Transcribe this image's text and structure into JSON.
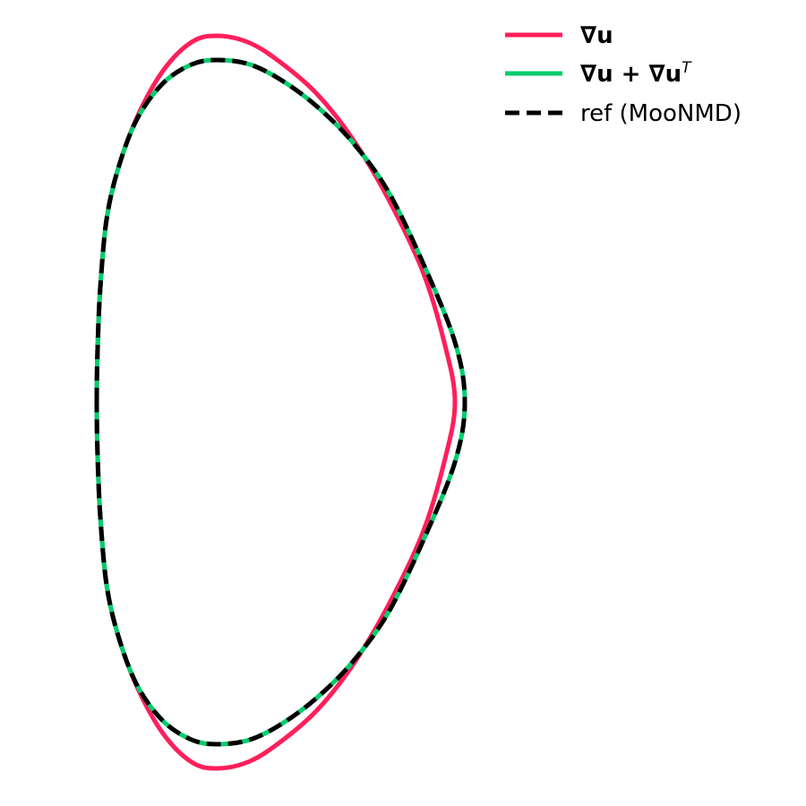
{
  "chart_data": {
    "type": "line",
    "title": "",
    "xlabel": "",
    "ylabel": "",
    "axes_visible": false,
    "grid": false,
    "legend_position": "top-right",
    "series": [
      {
        "name": "∇u",
        "color": "#ff1f5b",
        "style": "solid",
        "points": [
          [
            0.0,
            0.0
          ],
          [
            0.001,
            0.06
          ],
          [
            0.004,
            0.128
          ],
          [
            0.011,
            0.204
          ],
          [
            0.024,
            0.261
          ],
          [
            0.045,
            0.318
          ],
          [
            0.074,
            0.37
          ],
          [
            0.106,
            0.402
          ],
          [
            0.135,
            0.409
          ],
          [
            0.171,
            0.401
          ],
          [
            0.207,
            0.378
          ],
          [
            0.246,
            0.344
          ],
          [
            0.285,
            0.295
          ],
          [
            0.325,
            0.228
          ],
          [
            0.364,
            0.146
          ],
          [
            0.388,
            0.067
          ],
          [
            0.4,
            0.0
          ],
          [
            0.388,
            -0.067
          ],
          [
            0.364,
            -0.146
          ],
          [
            0.325,
            -0.228
          ],
          [
            0.285,
            -0.295
          ],
          [
            0.246,
            -0.344
          ],
          [
            0.207,
            -0.378
          ],
          [
            0.171,
            -0.401
          ],
          [
            0.135,
            -0.409
          ],
          [
            0.106,
            -0.402
          ],
          [
            0.074,
            -0.37
          ],
          [
            0.045,
            -0.318
          ],
          [
            0.024,
            -0.261
          ],
          [
            0.011,
            -0.204
          ],
          [
            0.004,
            -0.128
          ],
          [
            0.001,
            -0.06
          ],
          [
            0.0,
            0.0
          ]
        ]
      },
      {
        "name": "∇u + ∇u^T",
        "color": "#00cd6c",
        "style": "solid",
        "points": [
          [
            0.0,
            0.0
          ],
          [
            0.001,
            0.06
          ],
          [
            0.004,
            0.128
          ],
          [
            0.011,
            0.204
          ],
          [
            0.024,
            0.261
          ],
          [
            0.045,
            0.316
          ],
          [
            0.074,
            0.356
          ],
          [
            0.106,
            0.377
          ],
          [
            0.135,
            0.382
          ],
          [
            0.171,
            0.377
          ],
          [
            0.207,
            0.359
          ],
          [
            0.246,
            0.33
          ],
          [
            0.285,
            0.291
          ],
          [
            0.325,
            0.236
          ],
          [
            0.364,
            0.156
          ],
          [
            0.4,
            0.067
          ],
          [
            0.411,
            0.0
          ],
          [
            0.4,
            -0.067
          ],
          [
            0.364,
            -0.156
          ],
          [
            0.325,
            -0.236
          ],
          [
            0.285,
            -0.291
          ],
          [
            0.246,
            -0.33
          ],
          [
            0.207,
            -0.359
          ],
          [
            0.171,
            -0.377
          ],
          [
            0.135,
            -0.382
          ],
          [
            0.106,
            -0.377
          ],
          [
            0.074,
            -0.356
          ],
          [
            0.045,
            -0.316
          ],
          [
            0.024,
            -0.261
          ],
          [
            0.011,
            -0.204
          ],
          [
            0.004,
            -0.128
          ],
          [
            0.001,
            -0.06
          ],
          [
            0.0,
            0.0
          ]
        ]
      },
      {
        "name": "ref (MooNMD)",
        "color": "#000000",
        "style": "dashed",
        "points": [
          [
            0.0,
            0.0
          ],
          [
            0.001,
            0.06
          ],
          [
            0.004,
            0.128
          ],
          [
            0.011,
            0.204
          ],
          [
            0.024,
            0.261
          ],
          [
            0.045,
            0.316
          ],
          [
            0.074,
            0.356
          ],
          [
            0.106,
            0.377
          ],
          [
            0.135,
            0.382
          ],
          [
            0.171,
            0.377
          ],
          [
            0.207,
            0.359
          ],
          [
            0.246,
            0.33
          ],
          [
            0.285,
            0.291
          ],
          [
            0.325,
            0.236
          ],
          [
            0.364,
            0.156
          ],
          [
            0.4,
            0.067
          ],
          [
            0.411,
            0.0
          ],
          [
            0.4,
            -0.067
          ],
          [
            0.364,
            -0.156
          ],
          [
            0.325,
            -0.236
          ],
          [
            0.285,
            -0.291
          ],
          [
            0.246,
            -0.33
          ],
          [
            0.207,
            -0.359
          ],
          [
            0.171,
            -0.377
          ],
          [
            0.135,
            -0.382
          ],
          [
            0.106,
            -0.377
          ],
          [
            0.074,
            -0.356
          ],
          [
            0.045,
            -0.316
          ],
          [
            0.024,
            -0.261
          ],
          [
            0.011,
            -0.204
          ],
          [
            0.004,
            -0.128
          ],
          [
            0.001,
            -0.06
          ],
          [
            0.0,
            0.0
          ]
        ]
      }
    ],
    "legend": [
      {
        "label_main": "∇u",
        "label_sup": ""
      },
      {
        "label_main": "∇u + ∇u",
        "label_sup": "T"
      },
      {
        "label_main": "ref (MooNMD)",
        "label_sup": ""
      }
    ]
  }
}
